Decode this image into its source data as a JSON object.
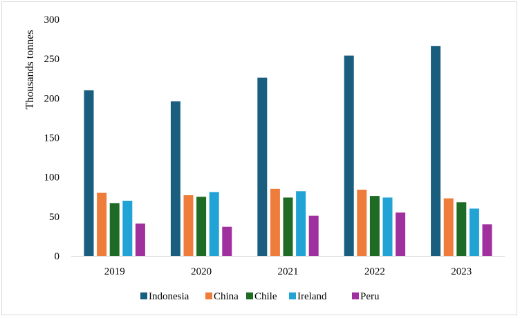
{
  "chart_data": {
    "type": "bar",
    "title": "",
    "xlabel": "",
    "ylabel": "Thousands tonnes",
    "ylim": [
      0,
      300
    ],
    "yticks": [
      0,
      50,
      100,
      150,
      200,
      250,
      300
    ],
    "grid": false,
    "legend_position": "bottom",
    "categories": [
      "2019",
      "2020",
      "2021",
      "2022",
      "2023"
    ],
    "series": [
      {
        "name": "Indonesia",
        "color": "#1a5e7f",
        "values": [
          210,
          196,
          226,
          254,
          266
        ]
      },
      {
        "name": "China",
        "color": "#ee7d3b",
        "values": [
          80,
          77,
          85,
          84,
          73
        ]
      },
      {
        "name": "Chile",
        "color": "#1e6b25",
        "values": [
          67,
          75,
          74,
          76,
          68
        ]
      },
      {
        "name": "Ireland",
        "color": "#22a3d6",
        "values": [
          70,
          81,
          82,
          74,
          60
        ]
      },
      {
        "name": "Peru",
        "color": "#a0309e",
        "values": [
          41,
          37,
          51,
          55,
          40
        ]
      }
    ]
  }
}
